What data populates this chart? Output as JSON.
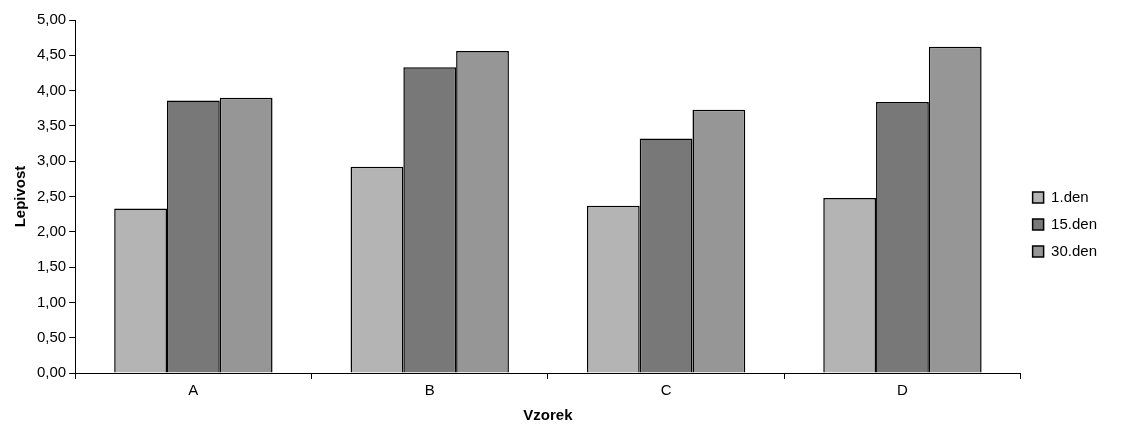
{
  "chart_data": {
    "type": "bar",
    "xlabel": "Vzorek",
    "ylabel": "Lepivost",
    "categories": [
      "A",
      "B",
      "C",
      "D"
    ],
    "series": [
      {
        "name": "1.den",
        "color": "#b4b4b4",
        "values": [
          2.33,
          2.92,
          2.37,
          2.48
        ]
      },
      {
        "name": "15.den",
        "color": "#787878",
        "values": [
          3.86,
          4.33,
          3.32,
          3.84
        ]
      },
      {
        "name": "30.den",
        "color": "#969696",
        "values": [
          3.9,
          4.56,
          3.73,
          4.62
        ]
      }
    ],
    "ylim": [
      0,
      5
    ],
    "yticks": [
      {
        "value": 0,
        "label": "0,00"
      },
      {
        "value": 0.5,
        "label": "0,50"
      },
      {
        "value": 1,
        "label": "1,00"
      },
      {
        "value": 1.5,
        "label": "1,50"
      },
      {
        "value": 2,
        "label": "2,00"
      },
      {
        "value": 2.5,
        "label": "2,50"
      },
      {
        "value": 3,
        "label": "3,00"
      },
      {
        "value": 3.5,
        "label": "3,50"
      },
      {
        "value": 4,
        "label": "4,00"
      },
      {
        "value": 4.5,
        "label": "4,50"
      },
      {
        "value": 5,
        "label": "5,00"
      }
    ],
    "grid": false,
    "legend": "right"
  }
}
